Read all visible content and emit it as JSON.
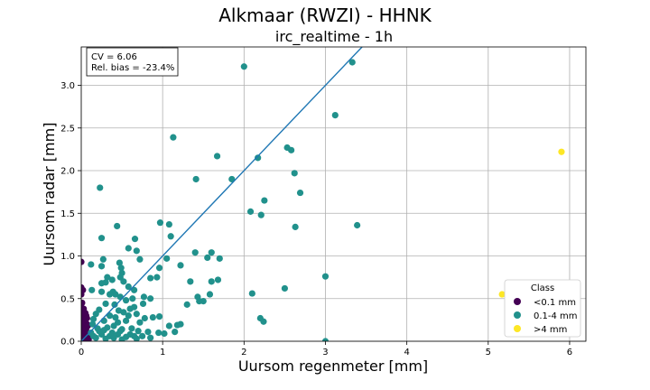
{
  "chart_data": {
    "type": "scatter",
    "title": "Alkmaar (RWZI) - HHNK",
    "subtitle": "irc_realtime - 1h",
    "xlabel": "Uursom regenmeter [mm]",
    "ylabel": "Uursom radar [mm]",
    "xlim": [
      0,
      6.2
    ],
    "ylim": [
      0,
      3.45
    ],
    "xticks": [
      0,
      1,
      2,
      3,
      4,
      5,
      6
    ],
    "yticks": [
      0.0,
      0.5,
      1.0,
      1.5,
      2.0,
      2.5,
      3.0
    ],
    "xtick_labels": [
      "0",
      "1",
      "2",
      "3",
      "4",
      "5",
      "6"
    ],
    "ytick_labels": [
      "0.0",
      "0.5",
      "1.0",
      "1.5",
      "2.0",
      "2.5",
      "3.0"
    ],
    "grid": true,
    "annotation": {
      "lines": [
        "CV = 6.06",
        "Rel. bias = -23.4%"
      ],
      "placement": "top-left"
    },
    "regression_line": {
      "color": "#1f77b4",
      "points": [
        [
          0,
          0
        ],
        [
          3.45,
          3.45
        ]
      ]
    },
    "legend": {
      "title": "Class",
      "placement": "bottom-right"
    },
    "series": [
      {
        "name": "<0.1 mm",
        "color": "#440154",
        "points": [
          [
            0,
            0.93
          ],
          [
            0,
            0.63
          ],
          [
            0,
            0.55
          ],
          [
            0,
            0.4
          ],
          [
            0,
            0.3
          ],
          [
            0,
            0.25
          ],
          [
            0,
            0.2
          ],
          [
            0,
            0.15
          ],
          [
            0,
            0.1
          ],
          [
            0,
            0.05
          ],
          [
            0,
            0.02
          ],
          [
            0,
            0
          ],
          [
            0.02,
            0.35
          ],
          [
            0.02,
            0.28
          ],
          [
            0.03,
            0.22
          ],
          [
            0.02,
            0.17
          ],
          [
            0.04,
            0.12
          ],
          [
            0.03,
            0.08
          ],
          [
            0.05,
            0.04
          ],
          [
            0.04,
            0.02
          ],
          [
            0.06,
            0.3
          ],
          [
            0.07,
            0.2
          ],
          [
            0.08,
            0.1
          ],
          [
            0.06,
            0.15
          ],
          [
            0.05,
            0.25
          ],
          [
            0.08,
            0.05
          ],
          [
            0.09,
            0.02
          ],
          [
            0.01,
            0.45
          ],
          [
            0.03,
            0.38
          ],
          [
            0.05,
            0.33
          ],
          [
            0.07,
            0.27
          ],
          [
            0.02,
            0.6
          ],
          [
            0.08,
            0.18
          ]
        ]
      },
      {
        "name": "0.1-4 mm",
        "color": "#21918c",
        "points": [
          [
            2.0,
            3.22
          ],
          [
            3.33,
            3.27
          ],
          [
            3.12,
            2.65
          ],
          [
            1.13,
            2.39
          ],
          [
            2.53,
            2.27
          ],
          [
            2.58,
            2.24
          ],
          [
            1.67,
            2.17
          ],
          [
            2.17,
            2.15
          ],
          [
            2.62,
            1.97
          ],
          [
            1.41,
            1.9
          ],
          [
            1.85,
            1.9
          ],
          [
            0.23,
            1.8
          ],
          [
            2.69,
            1.74
          ],
          [
            2.25,
            1.65
          ],
          [
            2.08,
            1.52
          ],
          [
            2.21,
            1.48
          ],
          [
            0.97,
            1.39
          ],
          [
            1.08,
            1.37
          ],
          [
            0.44,
            1.35
          ],
          [
            3.39,
            1.36
          ],
          [
            2.63,
            1.34
          ],
          [
            1.1,
            1.23
          ],
          [
            0.25,
            1.21
          ],
          [
            0.66,
            1.2
          ],
          [
            0.58,
            1.09
          ],
          [
            0.68,
            1.06
          ],
          [
            1.4,
            1.04
          ],
          [
            1.6,
            1.04
          ],
          [
            1.55,
            0.98
          ],
          [
            1.7,
            0.97
          ],
          [
            1.05,
            0.97
          ],
          [
            0.27,
            0.96
          ],
          [
            0.72,
            0.96
          ],
          [
            0.47,
            0.92
          ],
          [
            0.12,
            0.9
          ],
          [
            0.25,
            0.88
          ],
          [
            1.22,
            0.89
          ],
          [
            0.49,
            0.86
          ],
          [
            0.96,
            0.86
          ],
          [
            0.5,
            0.8
          ],
          [
            0.32,
            0.75
          ],
          [
            0.48,
            0.75
          ],
          [
            0.85,
            0.74
          ],
          [
            0.93,
            0.75
          ],
          [
            0.38,
            0.72
          ],
          [
            0.3,
            0.69
          ],
          [
            0.52,
            0.7
          ],
          [
            0.25,
            0.68
          ],
          [
            1.34,
            0.7
          ],
          [
            1.6,
            0.7
          ],
          [
            1.68,
            0.72
          ],
          [
            0.58,
            0.64
          ],
          [
            0.65,
            0.6
          ],
          [
            0.13,
            0.6
          ],
          [
            0.25,
            0.58
          ],
          [
            0.39,
            0.58
          ],
          [
            0.42,
            0.55
          ],
          [
            0.35,
            0.55
          ],
          [
            0.48,
            0.52
          ],
          [
            1.43,
            0.52
          ],
          [
            1.58,
            0.55
          ],
          [
            2.1,
            0.56
          ],
          [
            2.5,
            0.62
          ],
          [
            3.0,
            0.76
          ],
          [
            0.77,
            0.52
          ],
          [
            0.85,
            0.5
          ],
          [
            0.55,
            0.48
          ],
          [
            0.63,
            0.5
          ],
          [
            0.3,
            0.44
          ],
          [
            0.41,
            0.43
          ],
          [
            1.45,
            0.47
          ],
          [
            1.5,
            0.47
          ],
          [
            0.22,
            0.37
          ],
          [
            0.46,
            0.36
          ],
          [
            0.52,
            0.34
          ],
          [
            0.6,
            0.38
          ],
          [
            0.65,
            0.4
          ],
          [
            0.76,
            0.44
          ],
          [
            1.3,
            0.43
          ],
          [
            0.18,
            0.32
          ],
          [
            0.35,
            0.3
          ],
          [
            0.42,
            0.28
          ],
          [
            0.58,
            0.3
          ],
          [
            0.68,
            0.32
          ],
          [
            0.78,
            0.27
          ],
          [
            0.88,
            0.28
          ],
          [
            0.96,
            0.29
          ],
          [
            0.15,
            0.26
          ],
          [
            0.28,
            0.24
          ],
          [
            0.45,
            0.22
          ],
          [
            0.55,
            0.24
          ],
          [
            0.72,
            0.22
          ],
          [
            2.2,
            0.27
          ],
          [
            2.24,
            0.23
          ],
          [
            1.08,
            0.18
          ],
          [
            1.18,
            0.19
          ],
          [
            1.22,
            0.2
          ],
          [
            0.14,
            0.2
          ],
          [
            0.2,
            0.15
          ],
          [
            0.32,
            0.16
          ],
          [
            0.4,
            0.18
          ],
          [
            0.5,
            0.14
          ],
          [
            0.62,
            0.15
          ],
          [
            0.7,
            0.12
          ],
          [
            0.82,
            0.11
          ],
          [
            0.95,
            0.1
          ],
          [
            1.02,
            0.09
          ],
          [
            1.15,
            0.11
          ],
          [
            0.12,
            0.1
          ],
          [
            0.25,
            0.08
          ],
          [
            0.35,
            0.06
          ],
          [
            0.45,
            0.08
          ],
          [
            0.55,
            0.05
          ],
          [
            0.65,
            0.06
          ],
          [
            0.3,
            0.03
          ],
          [
            0.5,
            0.02
          ],
          [
            0.68,
            0.03
          ],
          [
            0.85,
            0.04
          ],
          [
            0.18,
            0.04
          ],
          [
            3.0,
            0.0
          ],
          [
            0.22,
            0.12
          ],
          [
            0.38,
            0.1
          ],
          [
            0.48,
            0.12
          ],
          [
            0.15,
            0.06
          ],
          [
            0.28,
            0.13
          ],
          [
            0.6,
            0.08
          ],
          [
            0.75,
            0.06
          ],
          [
            0.4,
            0.04
          ]
        ]
      },
      {
        "name": ">4 mm",
        "color": "#fde725",
        "points": [
          [
            5.9,
            2.22
          ],
          [
            5.17,
            0.55
          ]
        ]
      }
    ]
  }
}
